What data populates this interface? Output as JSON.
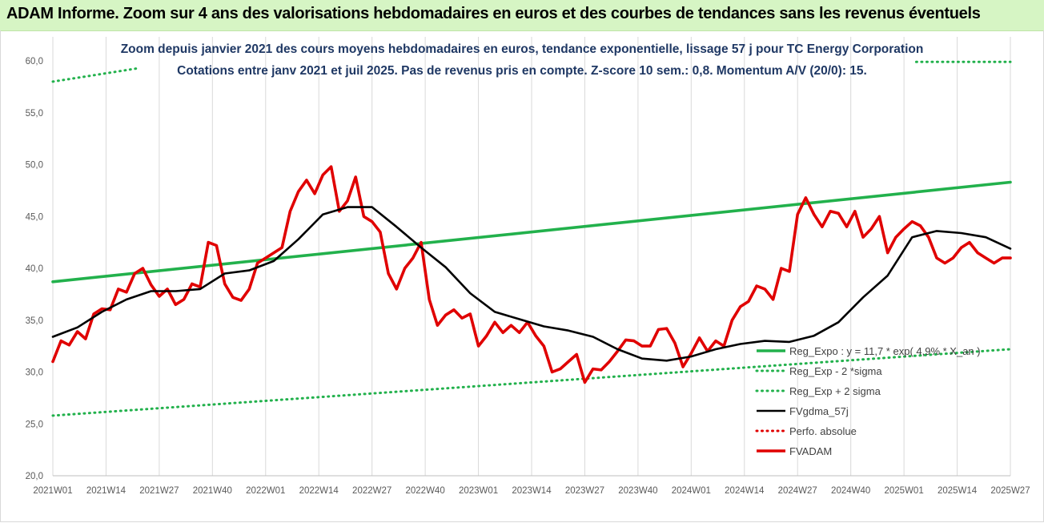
{
  "header": {
    "title": "ADAM Informe. Zoom sur 4 ans des valorisations hebdomadaires en euros et des courbes de tendances sans les revenus éventuels"
  },
  "chart_data": {
    "type": "line",
    "title": "Zoom depuis janvier 2021 des cours moyens hebdomadaires en euros, tendance exponentielle, lissage 57 j pour TC Energy Corporation",
    "subtitle": "Cotations entre janv 2021 et juil 2025. Pas de revenus pris en compte. Z-score 10 sem.: 0,8. Momentum A/V (20/0): 15.",
    "xlabel": "",
    "ylabel": "",
    "ylim": [
      20,
      60
    ],
    "y_ticks": [
      "20,0",
      "25,0",
      "30,0",
      "35,0",
      "40,0",
      "45,0",
      "50,0",
      "55,0",
      "60,0"
    ],
    "x_ticks": [
      "2021W01",
      "2021W14",
      "2021W27",
      "2021W40",
      "2022W01",
      "2022W14",
      "2022W27",
      "2022W40",
      "2023W01",
      "2023W14",
      "2023W27",
      "2023W40",
      "2024W01",
      "2024W14",
      "2024W27",
      "2024W40",
      "2025W01",
      "2025W14",
      "2025W27"
    ],
    "x_range": [
      0,
      234
    ],
    "grid": "vertical",
    "legend_position": "bottom-right",
    "colors": {
      "reg_expo": "#22b14c",
      "sigma": "#22b14c",
      "fvgdma": "#000000",
      "perfo": "#e00000",
      "fvadam": "#e00000"
    },
    "series": [
      {
        "name": "Reg_Expo : y = 11,7 * exp( 4,9% * X_an )",
        "style": "solid-thick",
        "x": [
          0,
          234
        ],
        "values": [
          38.7,
          48.3
        ]
      },
      {
        "name": "Reg_Exp - 2 *sigma",
        "style": "dotted",
        "x": [
          0,
          234
        ],
        "values": [
          25.8,
          32.2
        ]
      },
      {
        "name": "Reg_Exp + 2 sigma",
        "style": "dotted",
        "x": [
          0,
          21,
          211,
          234
        ],
        "values": [
          58.0,
          59.3,
          59.9,
          59.9
        ]
      },
      {
        "name": "FVgdma_57j",
        "style": "solid",
        "x": [
          0,
          6,
          12,
          18,
          24,
          30,
          36,
          42,
          48,
          54,
          60,
          66,
          72,
          78,
          84,
          90,
          96,
          102,
          108,
          114,
          120,
          126,
          132,
          138,
          144,
          150,
          156,
          162,
          168,
          174,
          180,
          186,
          192,
          198,
          204,
          210,
          216,
          222,
          228,
          234
        ],
        "values": [
          33.4,
          34.3,
          35.8,
          37.0,
          37.8,
          37.8,
          38.0,
          39.5,
          39.8,
          40.7,
          42.8,
          45.2,
          45.9,
          45.9,
          44.0,
          42.0,
          40.1,
          37.6,
          35.8,
          35.1,
          34.4,
          34.0,
          33.4,
          32.2,
          31.3,
          31.1,
          31.5,
          32.2,
          32.7,
          33.0,
          32.9,
          33.5,
          34.8,
          37.2,
          39.3,
          43.0,
          43.6,
          43.4,
          43.0,
          41.9
        ]
      },
      {
        "name": "Perfo. absolue",
        "style": "dotted",
        "x": [],
        "values": []
      },
      {
        "name": "FVADAM",
        "style": "solid-thick",
        "x": [
          0,
          2,
          4,
          6,
          8,
          10,
          12,
          14,
          16,
          18,
          20,
          22,
          24,
          26,
          28,
          30,
          32,
          34,
          36,
          38,
          40,
          42,
          44,
          46,
          48,
          50,
          52,
          54,
          56,
          58,
          60,
          62,
          64,
          66,
          68,
          70,
          72,
          74,
          76,
          78,
          80,
          82,
          84,
          86,
          88,
          90,
          92,
          94,
          96,
          98,
          100,
          102,
          104,
          106,
          108,
          110,
          112,
          114,
          116,
          118,
          120,
          122,
          124,
          126,
          128,
          130,
          132,
          134,
          136,
          138,
          140,
          142,
          144,
          146,
          148,
          150,
          152,
          154,
          156,
          158,
          160,
          162,
          164,
          166,
          168,
          170,
          172,
          174,
          176,
          178,
          180,
          182,
          184,
          186,
          188,
          190,
          192,
          194,
          196,
          198,
          200,
          202,
          204,
          206,
          208,
          210,
          212,
          214,
          216,
          218,
          220,
          222,
          224,
          226,
          228,
          230,
          232,
          234
        ],
        "values": [
          31.0,
          33.0,
          32.6,
          33.9,
          33.2,
          35.6,
          36.1,
          36.0,
          38.0,
          37.7,
          39.5,
          40.0,
          38.4,
          37.3,
          38.0,
          36.5,
          37.0,
          38.5,
          38.2,
          42.5,
          42.2,
          38.5,
          37.2,
          36.9,
          38.0,
          40.5,
          41.0,
          41.5,
          42.0,
          45.5,
          47.4,
          48.5,
          47.2,
          49.0,
          49.8,
          45.5,
          46.5,
          48.8,
          45.0,
          44.5,
          43.5,
          39.5,
          38.0,
          40.0,
          41.0,
          42.5,
          37.0,
          34.5,
          35.5,
          36.0,
          35.2,
          35.6,
          32.5,
          33.5,
          34.8,
          33.8,
          34.5,
          33.8,
          34.8,
          33.5,
          32.5,
          30.0,
          30.3,
          31.0,
          31.7,
          29.0,
          30.3,
          30.2,
          31.0,
          32.0,
          33.1,
          33.0,
          32.5,
          32.5,
          34.1,
          34.2,
          32.8,
          30.5,
          31.8,
          33.3,
          32.0,
          33.0,
          32.5,
          35.0,
          36.3,
          36.8,
          38.3,
          38.0,
          37.0,
          40.0,
          39.7,
          45.2,
          46.8,
          45.2,
          44.0,
          45.5,
          45.3,
          44.0,
          45.5,
          43.0,
          43.8,
          45.0,
          41.5,
          43.0,
          43.8,
          44.5,
          44.1,
          43.0,
          41.0,
          40.5,
          41.0,
          42.0,
          42.5,
          41.5,
          41.0,
          40.5,
          41.0,
          41.0
        ]
      }
    ]
  }
}
